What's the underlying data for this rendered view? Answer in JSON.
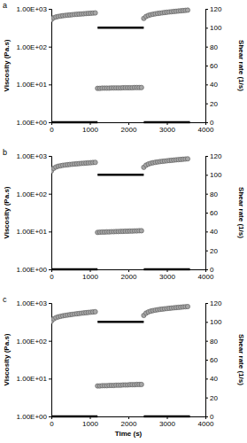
{
  "chart_data": [
    {
      "type": "scatter",
      "title": "a",
      "y_label": "Viscosity (Pa.s)",
      "y2_label": "Shear rate (1/s)",
      "log": "y",
      "xlim": [
        0,
        4000
      ],
      "xticks": [
        0,
        1000,
        2000,
        3000,
        4000
      ],
      "ylim": [
        1,
        1000
      ],
      "yticks": [
        {
          "value": 1,
          "label": "1.00E+00"
        },
        {
          "value": 10,
          "label": "1.00E+01"
        },
        {
          "value": 100,
          "label": "1.00E+02"
        },
        {
          "value": 1000,
          "label": "1.00E+03"
        }
      ],
      "y2lim": [
        0,
        120
      ],
      "y2ticks": [
        0,
        20,
        40,
        60,
        80,
        100,
        120
      ],
      "series": [
        {
          "type": "scatter",
          "marker": "circle",
          "color": "#a6a6a6",
          "x": [
            0,
            60,
            120,
            180,
            240,
            300,
            360,
            420,
            480,
            540,
            600,
            660,
            720,
            780,
            840,
            900,
            960,
            1020,
            1080,
            1140,
            1200,
            1260,
            1320,
            1380,
            1440,
            1500,
            1560,
            1620,
            1680,
            1740,
            1800,
            1860,
            1920,
            1980,
            2040,
            2100,
            2160,
            2220,
            2280,
            2340,
            2400,
            2460,
            2520,
            2580,
            2640,
            2700,
            2760,
            2820,
            2880,
            2940,
            3000,
            3060,
            3120,
            3180,
            3240,
            3300,
            3360,
            3420,
            3480,
            3540
          ],
          "values": [
            520,
            580,
            610,
            630,
            645,
            660,
            670,
            680,
            690,
            700,
            710,
            718,
            726,
            734,
            742,
            750,
            758,
            766,
            774,
            782,
            7.9,
            7.9,
            8.0,
            8.0,
            8.0,
            8.0,
            8.1,
            8.1,
            8.1,
            8.1,
            8.1,
            8.2,
            8.2,
            8.2,
            8.2,
            8.2,
            8.3,
            8.3,
            8.3,
            8.3,
            560,
            630,
            670,
            700,
            720,
            740,
            755,
            770,
            785,
            800,
            815,
            828,
            840,
            852,
            864,
            876,
            888,
            900,
            912,
            925
          ]
        },
        {
          "type": "line",
          "axis": "y2",
          "line_style": "solid",
          "color": "#000000",
          "x": [
            0,
            1200,
            1200,
            1200,
            2400,
            2400,
            2400,
            3600
          ],
          "values": [
            0,
            0,
            null,
            100,
            100,
            null,
            0,
            0
          ]
        }
      ]
    },
    {
      "type": "scatter",
      "title": "b",
      "y_label": "Viscosity (Pa.s)",
      "y2_label": "Shear rate (1/s)",
      "log": "y",
      "xlim": [
        0,
        4000
      ],
      "xticks": [
        0,
        1000,
        2000,
        3000,
        4000
      ],
      "ylim": [
        1,
        1000
      ],
      "yticks": [
        {
          "value": 1,
          "label": "1.00E+00"
        },
        {
          "value": 10,
          "label": "1.00E+01"
        },
        {
          "value": 100,
          "label": "1.00E+02"
        },
        {
          "value": 1000,
          "label": "1.00E+03"
        }
      ],
      "y2lim": [
        0,
        120
      ],
      "y2ticks": [
        0,
        20,
        40,
        60,
        80,
        100,
        120
      ],
      "series": [
        {
          "type": "scatter",
          "marker": "circle",
          "color": "#a6a6a6",
          "x": [
            0,
            60,
            120,
            180,
            240,
            300,
            360,
            420,
            480,
            540,
            600,
            660,
            720,
            780,
            840,
            900,
            960,
            1020,
            1080,
            1140,
            1200,
            1260,
            1320,
            1380,
            1440,
            1500,
            1560,
            1620,
            1680,
            1740,
            1800,
            1860,
            1920,
            1980,
            2040,
            2100,
            2160,
            2220,
            2280,
            2340,
            2400,
            2460,
            2520,
            2580,
            2640,
            2700,
            2760,
            2820,
            2880,
            2940,
            3000,
            3060,
            3120,
            3180,
            3240,
            3300,
            3360,
            3420,
            3480,
            3540
          ],
          "values": [
            400,
            470,
            510,
            535,
            550,
            565,
            575,
            585,
            595,
            603,
            611,
            619,
            627,
            634,
            641,
            648,
            655,
            662,
            669,
            676,
            9.5,
            9.6,
            9.7,
            9.7,
            9.8,
            9.8,
            9.9,
            9.9,
            10.0,
            10.0,
            10.1,
            10.1,
            10.2,
            10.2,
            10.3,
            10.3,
            10.4,
            10.4,
            10.5,
            10.5,
            500,
            570,
            610,
            640,
            660,
            678,
            694,
            708,
            720,
            732,
            744,
            755,
            766,
            777,
            788,
            798,
            808,
            818,
            828,
            838
          ]
        },
        {
          "type": "line",
          "axis": "y2",
          "line_style": "solid",
          "color": "#000000",
          "x": [
            0,
            1200,
            1200,
            1200,
            2400,
            2400,
            2400,
            3600
          ],
          "values": [
            0,
            0,
            null,
            100,
            100,
            null,
            0,
            0
          ]
        }
      ]
    },
    {
      "type": "scatter",
      "title": "c",
      "x_label": "Time (s)",
      "y_label": "Viscosity (Pa.s)",
      "y2_label": "Shear rate (1/s)",
      "log": "y",
      "xlim": [
        0,
        4000
      ],
      "xticks": [
        0,
        1000,
        2000,
        3000,
        4000
      ],
      "ylim": [
        1,
        1000
      ],
      "yticks": [
        {
          "value": 1,
          "label": "1.00E+00"
        },
        {
          "value": 10,
          "label": "1.00E+01"
        },
        {
          "value": 100,
          "label": "1.00E+02"
        },
        {
          "value": 1000,
          "label": "1.00E+03"
        }
      ],
      "y2lim": [
        0,
        120
      ],
      "y2ticks": [
        0,
        20,
        40,
        60,
        80,
        100,
        120
      ],
      "series": [
        {
          "type": "scatter",
          "marker": "circle",
          "color": "#a6a6a6",
          "x": [
            0,
            60,
            120,
            180,
            240,
            300,
            360,
            420,
            480,
            540,
            600,
            660,
            720,
            780,
            840,
            900,
            960,
            1020,
            1080,
            1140,
            1200,
            1260,
            1320,
            1380,
            1440,
            1500,
            1560,
            1620,
            1680,
            1740,
            1800,
            1860,
            1920,
            1980,
            2040,
            2100,
            2160,
            2220,
            2280,
            2340,
            2400,
            2460,
            2520,
            2580,
            2640,
            2700,
            2760,
            2820,
            2880,
            2940,
            3000,
            3060,
            3120,
            3180,
            3240,
            3300,
            3360,
            3420,
            3480,
            3540
          ],
          "values": [
            330,
            380,
            410,
            430,
            445,
            458,
            470,
            480,
            490,
            500,
            510,
            519,
            528,
            537,
            546,
            555,
            563,
            571,
            579,
            587,
            6.4,
            6.4,
            6.5,
            6.5,
            6.5,
            6.6,
            6.6,
            6.6,
            6.7,
            6.7,
            6.7,
            6.8,
            6.8,
            6.8,
            6.9,
            6.9,
            6.9,
            7.0,
            7.0,
            7.0,
            470,
            540,
            580,
            610,
            630,
            648,
            664,
            678,
            690,
            702,
            714,
            725,
            736,
            746,
            756,
            766,
            776,
            786,
            796,
            806
          ]
        },
        {
          "type": "line",
          "axis": "y2",
          "line_style": "solid",
          "color": "#000000",
          "x": [
            0,
            1200,
            1200,
            1200,
            2400,
            2400,
            2400,
            3600
          ],
          "values": [
            0,
            0,
            null,
            100,
            100,
            null,
            0,
            0
          ]
        }
      ]
    }
  ]
}
